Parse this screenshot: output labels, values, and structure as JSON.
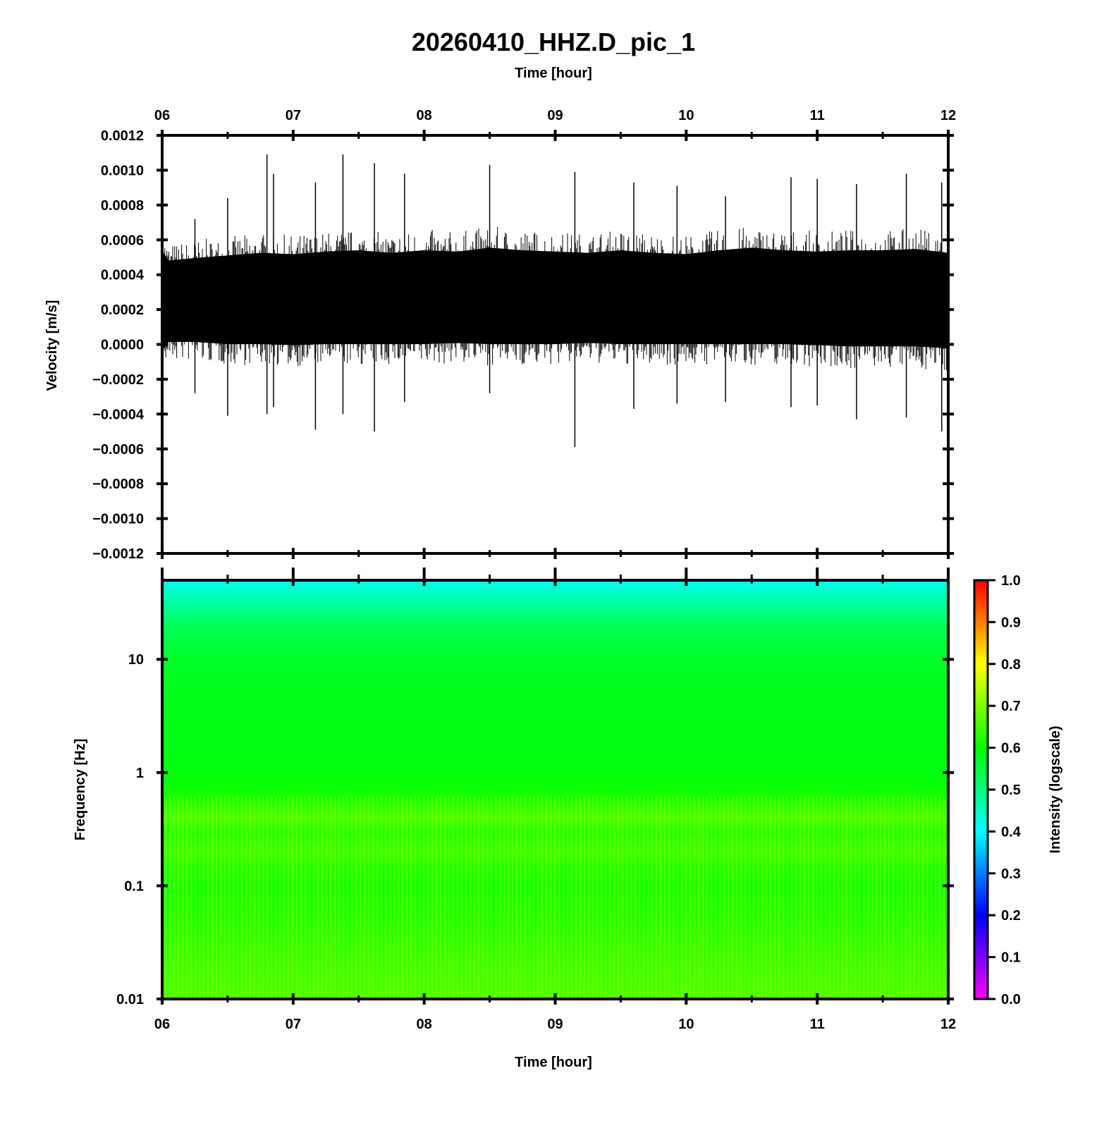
{
  "chart_data": [
    {
      "type": "line",
      "title": "20260410_HHZ.D_pic_1",
      "top_xlabel": "Time [hour]",
      "ylabel": "Velocity [m/s]",
      "x_ticks": [
        "06",
        "07",
        "08",
        "09",
        "10",
        "11",
        "12"
      ],
      "y_ticks": [
        "0.0012",
        "0.0010",
        "0.0008",
        "0.0006",
        "0.0004",
        "0.0002",
        "0.0000",
        "−0.0002",
        "−0.0004",
        "−0.0006",
        "−0.0008",
        "−0.0010",
        "−0.0012"
      ],
      "xlim": [
        6,
        12
      ],
      "ylim": [
        -0.0012,
        0.0012
      ],
      "grid": false,
      "series": [
        {
          "color": "#000000",
          "envelope": {
            "x": [
              6.0,
              6.05,
              6.25,
              6.5,
              6.75,
              7.0,
              7.25,
              7.5,
              7.75,
              8.0,
              8.25,
              8.5,
              8.75,
              9.0,
              9.25,
              9.5,
              9.75,
              10.0,
              10.25,
              10.5,
              10.75,
              11.0,
              11.25,
              11.5,
              11.75,
              12.0
            ],
            "upper": [
              0.00066,
              0.00058,
              0.0006,
              0.00062,
              0.00064,
              0.00063,
              0.00065,
              0.00066,
              0.00064,
              0.00066,
              0.00065,
              0.00068,
              0.00066,
              0.00065,
              0.00064,
              0.00066,
              0.00064,
              0.00063,
              0.00066,
              0.00068,
              0.00066,
              0.00065,
              0.00066,
              0.00066,
              0.00067,
              0.00064
            ],
            "lower": [
              -0.00018,
              -0.0001,
              -0.0001,
              -0.00012,
              -0.00012,
              -0.00013,
              -0.00012,
              -0.00012,
              -0.00012,
              -0.00012,
              -0.00011,
              -0.00012,
              -0.00012,
              -0.00012,
              -0.00011,
              -0.00012,
              -0.00012,
              -0.00012,
              -0.00012,
              -0.00012,
              -0.00012,
              -0.00013,
              -0.00014,
              -0.00014,
              -0.00014,
              -0.00016
            ]
          },
          "spikes": [
            {
              "x": 6.25,
              "max": 0.00072,
              "min": -0.00028
            },
            {
              "x": 6.5,
              "max": 0.00084,
              "min": -0.00041
            },
            {
              "x": 6.8,
              "max": 0.00109,
              "min": -0.0004
            },
            {
              "x": 6.85,
              "max": 0.00098,
              "min": -0.00036
            },
            {
              "x": 7.17,
              "max": 0.00093,
              "min": -0.00049
            },
            {
              "x": 7.38,
              "max": 0.00109,
              "min": -0.0004
            },
            {
              "x": 7.62,
              "max": 0.00104,
              "min": -0.0005
            },
            {
              "x": 7.85,
              "max": 0.00098,
              "min": -0.00033
            },
            {
              "x": 8.5,
              "max": 0.00103,
              "min": -0.00028
            },
            {
              "x": 9.15,
              "max": 0.00099,
              "min": -0.00059
            },
            {
              "x": 9.6,
              "max": 0.00093,
              "min": -0.00037
            },
            {
              "x": 9.93,
              "max": 0.00091,
              "min": -0.00034
            },
            {
              "x": 10.3,
              "max": 0.00085,
              "min": -0.00033
            },
            {
              "x": 10.8,
              "max": 0.00096,
              "min": -0.00036
            },
            {
              "x": 11.0,
              "max": 0.00095,
              "min": -0.00035
            },
            {
              "x": 11.3,
              "max": 0.00092,
              "min": -0.00043
            },
            {
              "x": 11.68,
              "max": 0.00098,
              "min": -0.00042
            },
            {
              "x": 11.95,
              "max": 0.00093,
              "min": -0.0005
            }
          ]
        }
      ]
    },
    {
      "type": "heatmap",
      "xlabel": "Time [hour]",
      "ylabel": "Frequency [Hz]",
      "x_ticks": [
        "06",
        "07",
        "08",
        "09",
        "10",
        "11",
        "12"
      ],
      "y_ticks": [
        "10",
        "1",
        "0.1",
        "0.01"
      ],
      "y_scale": "log",
      "xlim": [
        6,
        12
      ],
      "ylim": [
        0.01,
        50
      ],
      "colorbar": {
        "label": "Intensity (logscale)",
        "ticks": [
          "1.0",
          "0.9",
          "0.8",
          "0.7",
          "0.6",
          "0.5",
          "0.4",
          "0.3",
          "0.2",
          "0.1",
          "0.0"
        ],
        "range": [
          0,
          1
        ],
        "colors": [
          "#ff00ff",
          "#7f00ff",
          "#0000ff",
          "#007fff",
          "#00ffff",
          "#00ff7f",
          "#00ff00",
          "#7fff00",
          "#ffff00",
          "#ff7f00",
          "#ff0000"
        ]
      },
      "intensity_profile": {
        "frequency_hz": [
          50,
          30,
          20,
          10,
          5,
          2,
          1,
          0.6,
          0.4,
          0.3,
          0.2,
          0.15,
          0.1,
          0.05,
          0.02,
          0.01
        ],
        "intensity": [
          0.41,
          0.48,
          0.53,
          0.57,
          0.58,
          0.585,
          0.59,
          0.62,
          0.66,
          0.63,
          0.65,
          0.63,
          0.62,
          0.63,
          0.65,
          0.66
        ]
      }
    }
  ]
}
